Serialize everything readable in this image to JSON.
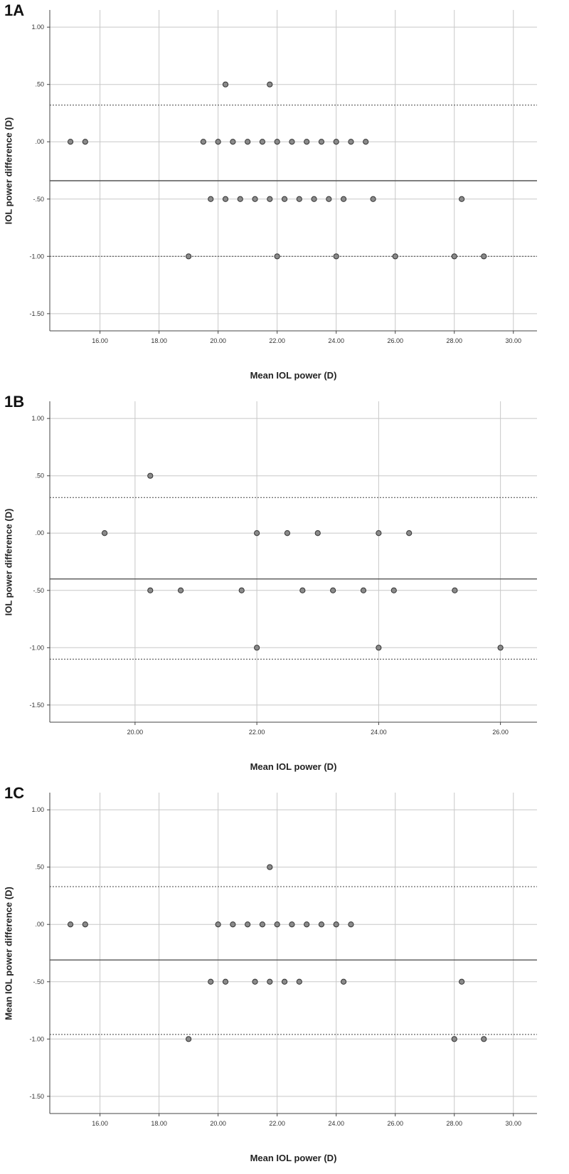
{
  "chart_data": [
    {
      "type": "scatter",
      "panel_label": "1A",
      "xlabel": "Mean IOL power (D)",
      "ylabel": "IOL power difference (D)",
      "xlim": [
        14.3,
        30.8
      ],
      "ylim": [
        -1.65,
        1.15
      ],
      "xticks": [
        16,
        18,
        20,
        22,
        24,
        26,
        28,
        30
      ],
      "xtick_labels": [
        "16.00",
        "18.00",
        "20.00",
        "22.00",
        "24.00",
        "26.00",
        "28.00",
        "30.00"
      ],
      "yticks": [
        1.0,
        0.5,
        0.0,
        -0.5,
        -1.0,
        -1.5
      ],
      "ytick_labels": [
        "1.00",
        ".50",
        ".00",
        "-.50",
        "-1.00",
        "-1.50"
      ],
      "grid": true,
      "mean_line": -0.34,
      "limits_of_agreement": [
        0.32,
        -1.0
      ],
      "points": [
        [
          15.0,
          0.0
        ],
        [
          15.5,
          0.0
        ],
        [
          19.5,
          0.0
        ],
        [
          20.0,
          0.0
        ],
        [
          20.5,
          0.0
        ],
        [
          21.0,
          0.0
        ],
        [
          21.5,
          0.0
        ],
        [
          22.0,
          0.0
        ],
        [
          22.5,
          0.0
        ],
        [
          23.0,
          0.0
        ],
        [
          23.5,
          0.0
        ],
        [
          24.0,
          0.0
        ],
        [
          24.5,
          0.0
        ],
        [
          25.0,
          0.0
        ],
        [
          20.25,
          0.5
        ],
        [
          21.75,
          0.5
        ],
        [
          19.75,
          -0.5
        ],
        [
          20.25,
          -0.5
        ],
        [
          20.75,
          -0.5
        ],
        [
          21.25,
          -0.5
        ],
        [
          21.75,
          -0.5
        ],
        [
          22.25,
          -0.5
        ],
        [
          22.75,
          -0.5
        ],
        [
          23.25,
          -0.5
        ],
        [
          23.75,
          -0.5
        ],
        [
          24.25,
          -0.5
        ],
        [
          25.25,
          -0.5
        ],
        [
          28.25,
          -0.5
        ],
        [
          19.0,
          -1.0
        ],
        [
          22.0,
          -1.0
        ],
        [
          24.0,
          -1.0
        ],
        [
          26.0,
          -1.0
        ],
        [
          28.0,
          -1.0
        ],
        [
          29.0,
          -1.0
        ]
      ]
    },
    {
      "type": "scatter",
      "panel_label": "1B",
      "xlabel": "Mean IOL power (D)",
      "ylabel": "IOL power difference (D)",
      "xlim": [
        18.6,
        26.6
      ],
      "ylim": [
        -1.65,
        1.15
      ],
      "xticks": [
        20,
        22,
        24,
        26
      ],
      "xtick_labels": [
        "20.00",
        "22.00",
        "24.00",
        "26.00"
      ],
      "yticks": [
        1.0,
        0.5,
        0.0,
        -0.5,
        -1.0,
        -1.5
      ],
      "ytick_labels": [
        "1.00",
        ".50",
        ".00",
        "-.50",
        "-1.00",
        "-1.50"
      ],
      "grid": true,
      "mean_line": -0.4,
      "limits_of_agreement": [
        0.31,
        -1.1
      ],
      "points": [
        [
          20.25,
          0.5
        ],
        [
          19.5,
          0.0
        ],
        [
          22.0,
          0.0
        ],
        [
          22.5,
          0.0
        ],
        [
          23.0,
          0.0
        ],
        [
          24.0,
          0.0
        ],
        [
          24.5,
          0.0
        ],
        [
          20.25,
          -0.5
        ],
        [
          20.75,
          -0.5
        ],
        [
          21.75,
          -0.5
        ],
        [
          22.75,
          -0.5
        ],
        [
          23.25,
          -0.5
        ],
        [
          23.75,
          -0.5
        ],
        [
          24.25,
          -0.5
        ],
        [
          25.25,
          -0.5
        ],
        [
          22.0,
          -1.0
        ],
        [
          24.0,
          -1.0
        ],
        [
          26.0,
          -1.0
        ]
      ]
    },
    {
      "type": "scatter",
      "panel_label": "1C",
      "xlabel": "Mean IOL power (D)",
      "ylabel": "Mean IOL power difference (D)",
      "xlim": [
        14.3,
        30.8
      ],
      "ylim": [
        -1.65,
        1.15
      ],
      "xticks": [
        16,
        18,
        20,
        22,
        24,
        26,
        28,
        30
      ],
      "xtick_labels": [
        "16.00",
        "18.00",
        "20.00",
        "22.00",
        "24.00",
        "26.00",
        "28.00",
        "30.00"
      ],
      "yticks": [
        1.0,
        0.5,
        0.0,
        -0.5,
        -1.0,
        -1.5
      ],
      "ytick_labels": [
        "1.00",
        ".50",
        ".00",
        "-.50",
        "-1.00",
        "-1.50"
      ],
      "grid": true,
      "mean_line": -0.31,
      "limits_of_agreement": [
        0.33,
        -0.96
      ],
      "points": [
        [
          21.75,
          0.5
        ],
        [
          15.0,
          0.0
        ],
        [
          15.5,
          0.0
        ],
        [
          20.0,
          0.0
        ],
        [
          20.5,
          0.0
        ],
        [
          21.0,
          0.0
        ],
        [
          21.5,
          0.0
        ],
        [
          22.0,
          0.0
        ],
        [
          22.5,
          0.0
        ],
        [
          23.0,
          0.0
        ],
        [
          23.5,
          0.0
        ],
        [
          24.0,
          0.0
        ],
        [
          24.5,
          0.0
        ],
        [
          19.75,
          -0.5
        ],
        [
          20.25,
          -0.5
        ],
        [
          21.25,
          -0.5
        ],
        [
          21.75,
          -0.5
        ],
        [
          22.25,
          -0.5
        ],
        [
          22.75,
          -0.5
        ],
        [
          24.25,
          -0.5
        ],
        [
          28.25,
          -0.5
        ],
        [
          19.0,
          -1.0
        ],
        [
          28.0,
          -1.0
        ],
        [
          29.0,
          -1.0
        ]
      ]
    }
  ]
}
